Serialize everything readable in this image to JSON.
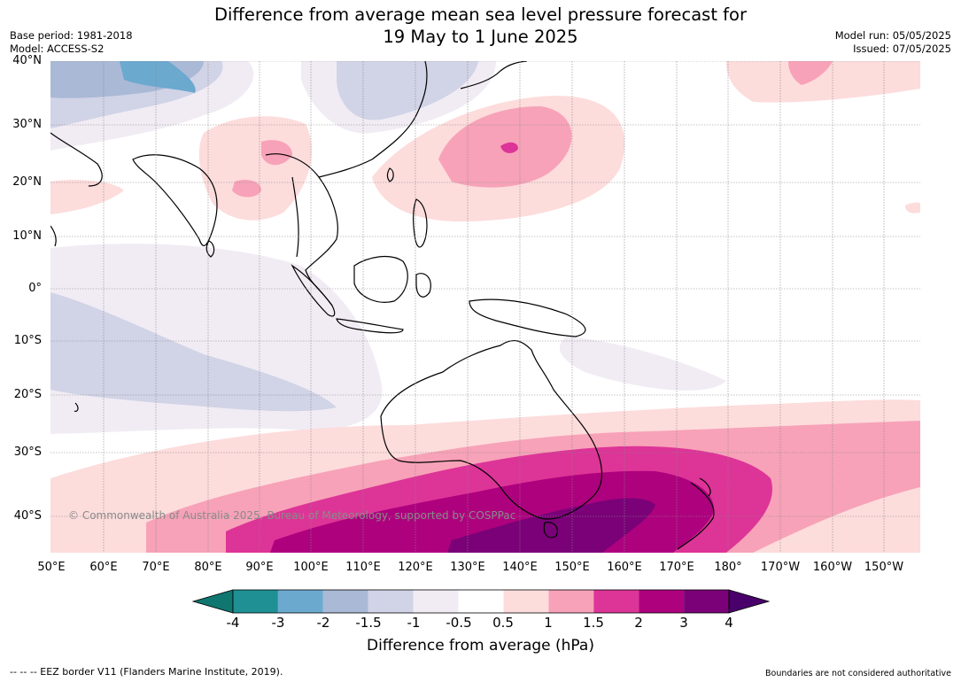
{
  "title": {
    "line1": "Difference from average mean sea level pressure forecast for",
    "line2": "19 May to 1 June 2025"
  },
  "meta": {
    "base_period": "Base period: 1981-2018",
    "model": "Model: ACCESS-S2",
    "model_run": "Model run: 05/05/2025",
    "issued": "Issued: 07/05/2025"
  },
  "axes": {
    "lat_labels": [
      "40°N",
      "30°N",
      "20°N",
      "10°N",
      "0°",
      "10°S",
      "20°S",
      "30°S",
      "40°S"
    ],
    "lon_labels": [
      "50°E",
      "60°E",
      "70°E",
      "80°E",
      "90°E",
      "100°E",
      "110°E",
      "120°E",
      "130°E",
      "140°E",
      "150°E",
      "160°E",
      "170°E",
      "180°",
      "170°W",
      "160°W",
      "150°W"
    ]
  },
  "copyright": "© Commonwealth of Australia 2025, Bureau of Meteorology, supported by COSPPac",
  "colorbar": {
    "ticks": [
      "-4",
      "-3",
      "-2",
      "-1.5",
      "-1",
      "-0.5",
      "0.5",
      "1",
      "1.5",
      "2",
      "3",
      "4"
    ],
    "colors": [
      "#0f7670",
      "#1f9094",
      "#6ba9cf",
      "#a9b9d6",
      "#d1d3e6",
      "#f1ecf4",
      "#ffffff",
      "#fddcdc",
      "#f7a2b8",
      "#dd3497",
      "#ae017e",
      "#7a0177",
      "#49006a"
    ],
    "label": "Difference from average (hPa)"
  },
  "footer": {
    "eez": "--  --  -- EEZ border V11 (Flanders Marine Institute, 2019).",
    "disclaimer": "Boundaries are not considered authoritative"
  }
}
